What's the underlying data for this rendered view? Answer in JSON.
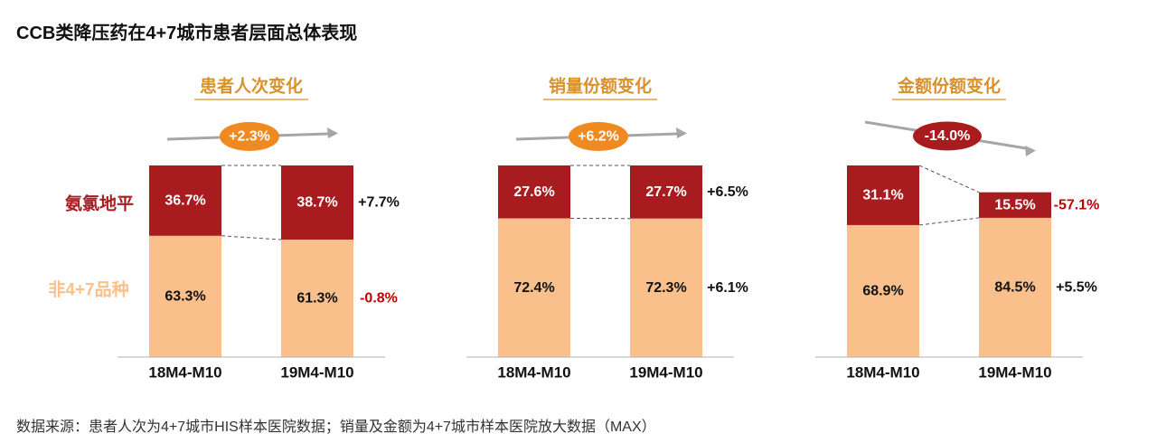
{
  "title": "CCB类降压药在4+7城市患者层面总体表现",
  "source": "数据来源：患者人次为4+7城市HIS样本医院数据；销量及金额为4+7城市样本医院放大数据（MAX）",
  "colors": {
    "top_series": "#a81c20",
    "bottom_series": "#fac08c",
    "panel_title": "#d9922a",
    "negative": "#c00000",
    "positive": "#111111",
    "bubble_positive": "#ee8a20",
    "bubble_negative": "#a81c20",
    "arrow": "#a6a6a6"
  },
  "chart_data": [
    {
      "type": "bar",
      "stacked": true,
      "normalized_percent": true,
      "title": "患者人次变化",
      "categories": [
        "18M4-M10",
        "19M4-M10"
      ],
      "series": [
        {
          "name": "非4+7品种",
          "values": [
            63.3,
            61.3
          ],
          "labels": [
            "63.3%",
            "61.3%"
          ]
        },
        {
          "name": "氨氯地平",
          "values": [
            36.7,
            38.7
          ],
          "labels": [
            "36.7%",
            "38.7%"
          ]
        }
      ],
      "growth": {
        "非4+7品种": "-0.8%",
        "氨氯地平": "+7.7%"
      },
      "total_growth": "+2.3%",
      "trend": "up"
    },
    {
      "type": "bar",
      "stacked": true,
      "normalized_percent": true,
      "title": "销量份额变化",
      "categories": [
        "18M4-M10",
        "19M4-M10"
      ],
      "series": [
        {
          "name": "非4+7品种",
          "values": [
            72.4,
            72.3
          ],
          "labels": [
            "72.4%",
            "72.3%"
          ]
        },
        {
          "name": "氨氯地平",
          "values": [
            27.6,
            27.7
          ],
          "labels": [
            "27.6%",
            "27.7%"
          ]
        }
      ],
      "growth": {
        "非4+7品种": "+6.1%",
        "氨氯地平": "+6.5%"
      },
      "total_growth": "+6.2%",
      "trend": "up"
    },
    {
      "type": "bar",
      "stacked": true,
      "normalized_percent": false,
      "title": "金额份额变化",
      "categories": [
        "18M4-M10",
        "19M4-M10"
      ],
      "series": [
        {
          "name": "非4+7品种",
          "values": [
            68.9,
            84.5
          ],
          "labels": [
            "68.9%",
            "84.5%"
          ]
        },
        {
          "name": "氨氯地平",
          "values": [
            31.1,
            15.5
          ],
          "labels": [
            "31.1%",
            "15.5%"
          ]
        }
      ],
      "growth": {
        "非4+7品种": "+5.5%",
        "氨氯地平": "-57.1%"
      },
      "total_growth": "-14.0%",
      "trend": "down",
      "second_bar_relative_total": 0.86
    }
  ]
}
